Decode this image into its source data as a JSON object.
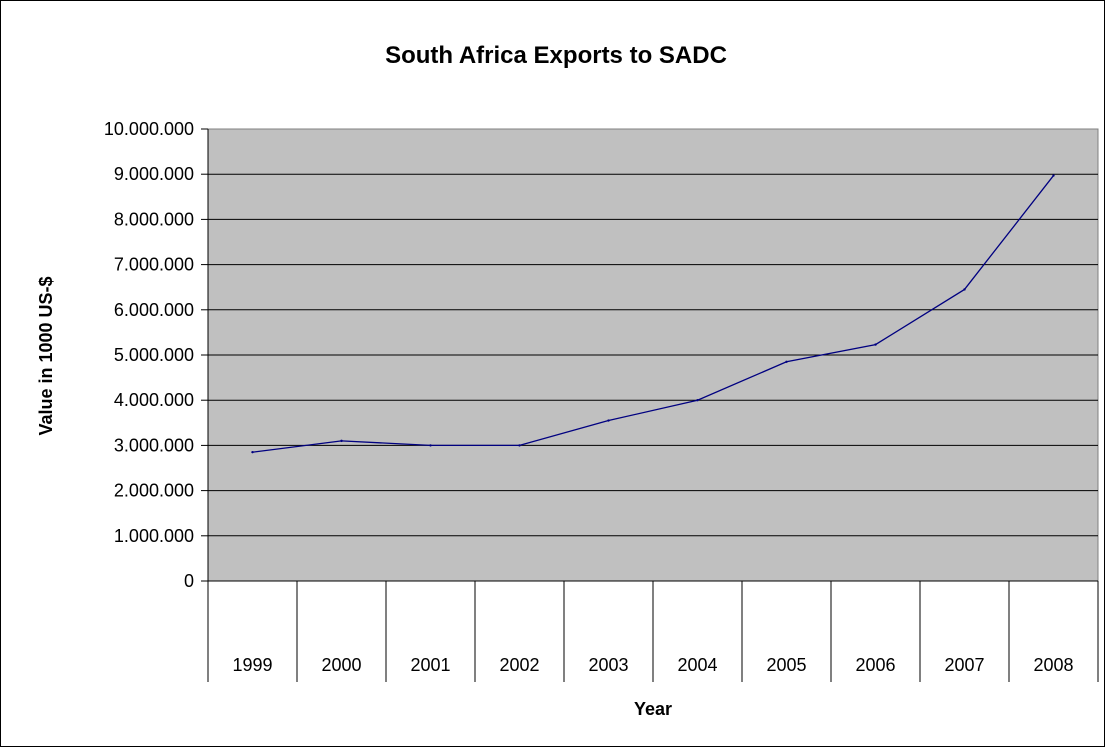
{
  "chart_data": {
    "type": "line",
    "title": "South Africa Exports to SADC",
    "xlabel": "Year",
    "ylabel": "Value in 1000 US-$",
    "categories": [
      "1999",
      "2000",
      "2001",
      "2002",
      "2003",
      "2004",
      "2005",
      "2006",
      "2007",
      "2008"
    ],
    "series": [
      {
        "values": [
          2850000,
          3100000,
          3000000,
          3000000,
          3550000,
          4000000,
          4850000,
          5230000,
          6450000,
          8970000
        ]
      }
    ],
    "ylim": [
      0,
      10000000
    ],
    "yticks": [
      0,
      1000000,
      2000000,
      3000000,
      4000000,
      5000000,
      6000000,
      7000000,
      8000000,
      9000000,
      10000000
    ],
    "ytick_labels": [
      "0",
      "1.000.000",
      "2.000.000",
      "3.000.000",
      "4.000.000",
      "5.000.000",
      "6.000.000",
      "7.000.000",
      "8.000.000",
      "9.000.000",
      "10.000.000"
    ],
    "grid": "horizontal",
    "legend": "none",
    "colors": {
      "plot_background": "#c0c0c0",
      "line": "#000080",
      "grid": "#000000"
    }
  }
}
